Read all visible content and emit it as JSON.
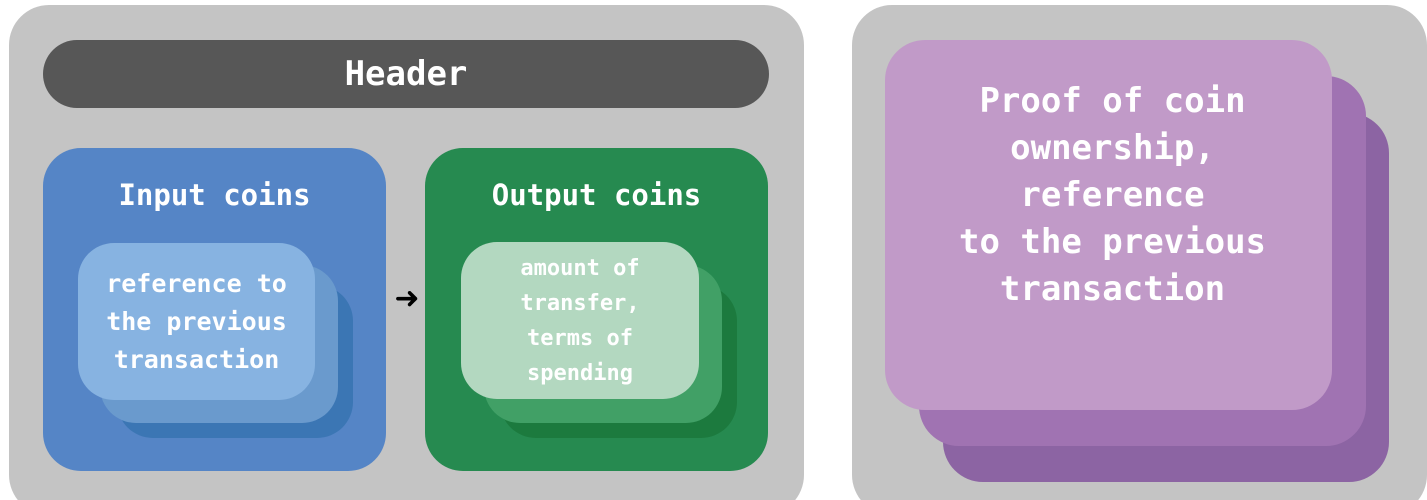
{
  "header": {
    "label": "Header"
  },
  "input": {
    "title": "Input coins",
    "card_lines": [
      "reference to",
      "the previous",
      "transaction"
    ]
  },
  "output": {
    "title": "Output coins",
    "card_lines": [
      "amount of",
      "transfer,",
      "terms of",
      "spending"
    ]
  },
  "arrow": {
    "glyph": "➜"
  },
  "proof": {
    "card_lines": [
      "Proof of coin",
      "ownership,",
      "reference",
      "to the previous",
      "transaction"
    ]
  },
  "colors": {
    "panel": "#c4c4c4",
    "header": "#575757",
    "input_blue": "#5585c6",
    "output_green": "#268a50",
    "proof_purple": "#c19ac8"
  }
}
